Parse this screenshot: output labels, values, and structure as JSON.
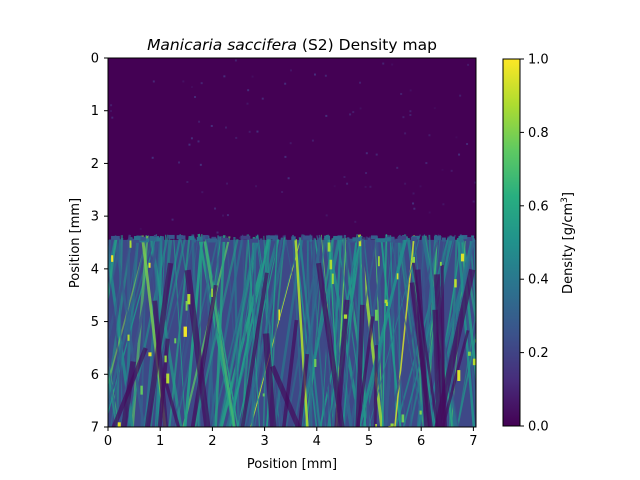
{
  "chart_data": {
    "type": "heatmap",
    "title": {
      "italic_part": "Manicaria saccifera",
      "rest": " (S2) Density map"
    },
    "xlabel": "Position [mm]",
    "ylabel": "Position [mm]",
    "xlim": [
      0,
      7.05
    ],
    "ylim": [
      7,
      0
    ],
    "x_ticks": [
      "0",
      "1",
      "2",
      "3",
      "4",
      "5",
      "6",
      "7"
    ],
    "y_ticks": [
      "0",
      "1",
      "2",
      "3",
      "4",
      "5",
      "6",
      "7"
    ],
    "colorbar": {
      "label_prefix": "Density [g/cm",
      "label_sup": "3",
      "label_suffix": "]",
      "range": [
        0,
        1.0
      ],
      "ticks": [
        "0.0",
        "0.2",
        "0.4",
        "0.6",
        "0.8",
        "1.0"
      ],
      "colormap": "viridis"
    },
    "regions": {
      "empty_background": {
        "y_range": [
          0,
          3.45
        ],
        "density": 0.02
      },
      "fibrous_material": {
        "y_range": [
          3.45,
          7
        ],
        "density_typical": [
          0.2,
          0.6
        ],
        "density_peak": 1.0
      }
    },
    "grid": false
  }
}
